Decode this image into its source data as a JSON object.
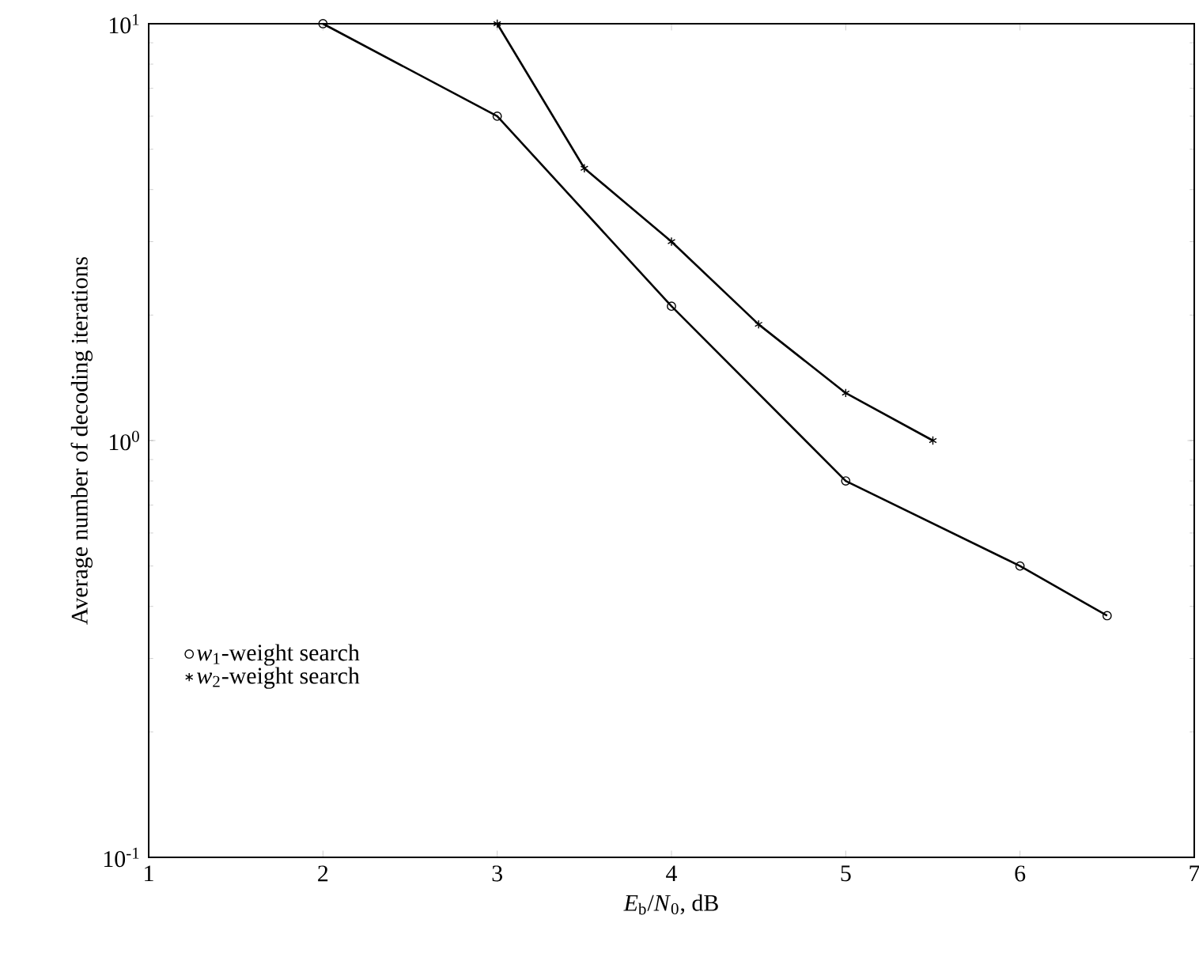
{
  "chart_data": {
    "type": "line",
    "xlabel": "*E*$_{b}$/*N*$_{0}$, dB",
    "ylabel": "Average number of decoding iterations",
    "log": "y",
    "xlim": [
      1,
      7
    ],
    "ylim": [
      0.1,
      10
    ],
    "xticks": [
      1,
      2,
      3,
      4,
      5,
      6,
      7
    ],
    "yticks": [
      {
        "value": 0.1,
        "label": "10$^{-1}$"
      },
      {
        "value": 1,
        "label": "10$^{0}$"
      },
      {
        "value": 10,
        "label": "10$^{1}$"
      }
    ],
    "grid": false,
    "legend": "bottom left",
    "series": [
      {
        "name": "*w*$_{1}$-weight search",
        "color": "#000000",
        "marker": "circle",
        "x": [
          2,
          3,
          4,
          5,
          6,
          6.5
        ],
        "values": [
          10,
          6.0,
          2.1,
          0.8,
          0.5,
          0.38
        ]
      },
      {
        "name": "*w*$_{2}$-weight search",
        "color": "#000000",
        "marker": "cross",
        "x": [
          3,
          3.5,
          4,
          4.5,
          5,
          5.5
        ],
        "values": [
          10,
          4.5,
          3.0,
          1.9,
          1.3,
          1.0
        ]
      }
    ]
  }
}
